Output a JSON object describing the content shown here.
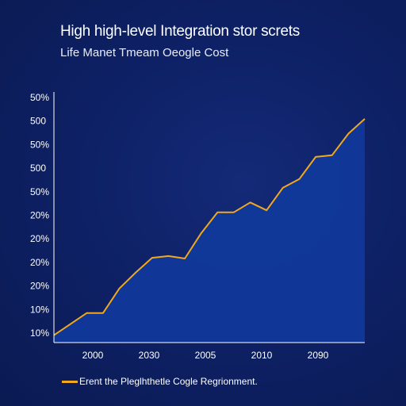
{
  "colors": {
    "background": "#0d1f5c",
    "area_fill": "#103a9c",
    "line": "#f2a81d",
    "axis": "#ffffff"
  },
  "chart_data": {
    "type": "area",
    "title": "High high-level Integration stor screts",
    "subtitle": "Life Manet Tmeam Oeogle Cost",
    "y_tick_labels": [
      "50%",
      "500",
      "50%",
      "500",
      "50%",
      "20%",
      "20%",
      "20%",
      "20%",
      "10%",
      "10%"
    ],
    "x_tick_labels": [
      "2000",
      "2030",
      "2005",
      "2010",
      "2090"
    ],
    "series": [
      {
        "name": "Erent the Pleglhthetle Cogle Regrionment.",
        "values": [
          0.3,
          0.75,
          1.2,
          1.2,
          2.2,
          2.85,
          3.45,
          3.52,
          3.42,
          4.45,
          5.3,
          5.3,
          5.7,
          5.38,
          6.3,
          6.65,
          7.55,
          7.62,
          8.5,
          9.1
        ],
        "legend_label": "Erent the Pleglhthetle Cogle Regrionment."
      }
    ],
    "ylim": [
      0,
      10
    ],
    "grid": false,
    "legend_position": "bottom-left"
  }
}
